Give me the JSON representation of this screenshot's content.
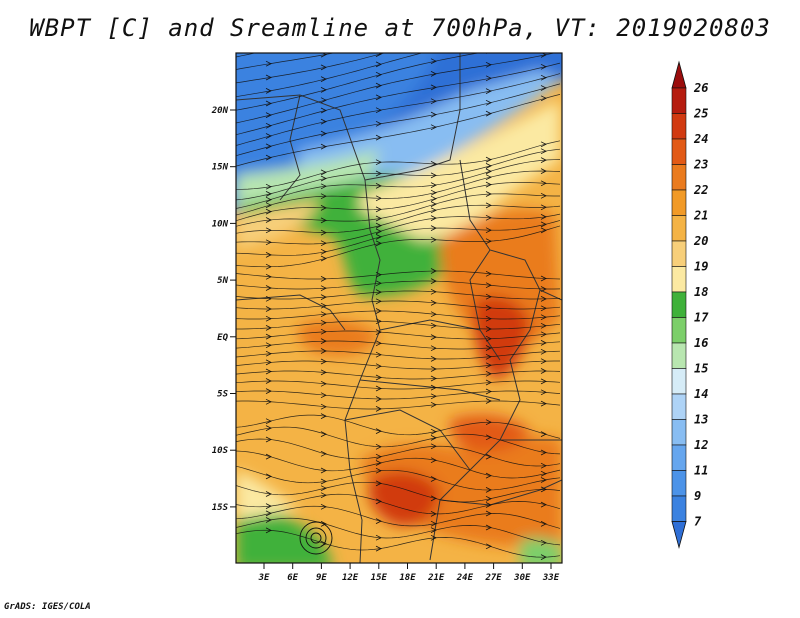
{
  "title": "WBPT [C] and Sreamline at 700hPa, VT: 2019020803",
  "credit": "GrADS: IGES/COLA",
  "map": {
    "lat_ticks": [
      "20N",
      "15N",
      "10N",
      "5N",
      "EQ",
      "5S",
      "10S",
      "15S"
    ],
    "lon_ticks": [
      "3E",
      "6E",
      "9E",
      "12E",
      "15E",
      "18E",
      "21E",
      "24E",
      "27E",
      "30E",
      "33E"
    ]
  },
  "colorbar": {
    "labels": [
      "7",
      "9",
      "11",
      "12",
      "13",
      "14",
      "15",
      "16",
      "17",
      "18",
      "19",
      "20",
      "21",
      "22",
      "23",
      "24",
      "25",
      "26"
    ],
    "colors": [
      "#2f6fd6",
      "#3b82e0",
      "#4c93e8",
      "#66a6ee",
      "#88bdf2",
      "#aed3f6",
      "#d6ecf7",
      "#b8e6b0",
      "#7ccf6a",
      "#3fb13a",
      "#fbe9a2",
      "#f7cf7a",
      "#f4b345",
      "#f19a27",
      "#ea7b1e",
      "#e25a16",
      "#d13a11",
      "#b51c0f",
      "#9b0d0d"
    ]
  },
  "field_colors": {
    "cool_blue": "#2f6fd6",
    "light_blue": "#88bdf2",
    "green": "#3fb13a",
    "yellow": "#fbe9a2",
    "orange": "#f4b345",
    "dark_orange": "#ea7b1e",
    "red": "#d13a11"
  }
}
